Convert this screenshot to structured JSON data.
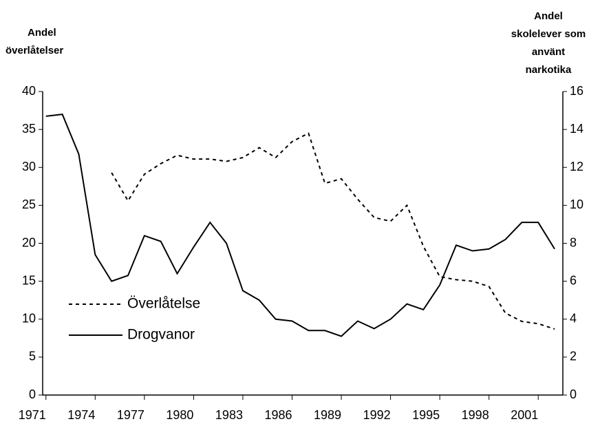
{
  "chart_data": {
    "type": "line",
    "ylabel": [
      "Andel",
      "överlåtelser"
    ],
    "y2label": [
      "Andel",
      "skolelever som",
      "använt",
      "narkotika"
    ],
    "x": [
      1971,
      1972,
      1973,
      1974,
      1975,
      1976,
      1977,
      1978,
      1979,
      1980,
      1981,
      1982,
      1983,
      1984,
      1985,
      1986,
      1987,
      1988,
      1989,
      1990,
      1991,
      1992,
      1993,
      1994,
      1995,
      1996,
      1997,
      1998,
      1999,
      2000,
      2001,
      2002
    ],
    "series": [
      {
        "name": "Överlåtelse",
        "color": "#000000",
        "dash": true,
        "axis": "y",
        "values": [
          null,
          null,
          null,
          null,
          29.3,
          25.6,
          29.1,
          30.5,
          31.6,
          31.1,
          31.1,
          30.8,
          31.3,
          32.6,
          31.3,
          33.4,
          34.5,
          27.9,
          28.5,
          25.8,
          23.4,
          22.9,
          25.0,
          19.6,
          15.6,
          15.2,
          15.0,
          14.3,
          10.8,
          9.7,
          9.4,
          8.7
        ]
      },
      {
        "name": "Drogvanor",
        "color": "#000000",
        "dash": false,
        "axis": "y2",
        "values": [
          14.7,
          14.8,
          12.7,
          7.4,
          6.0,
          6.3,
          8.4,
          8.1,
          6.4,
          7.8,
          9.1,
          8.0,
          5.5,
          5.0,
          4.0,
          3.9,
          3.4,
          3.4,
          3.1,
          3.9,
          3.5,
          4.0,
          4.8,
          4.5,
          5.8,
          7.9,
          7.6,
          7.7,
          8.2,
          9.1,
          9.1,
          7.7
        ]
      }
    ],
    "xlim": [
      1970.8,
      2002.5
    ],
    "xticks": [
      1971,
      1974,
      1977,
      1980,
      1983,
      1986,
      1989,
      1992,
      1995,
      1998,
      2001
    ],
    "ylim": [
      0,
      40
    ],
    "yticks": [
      0,
      5,
      10,
      15,
      20,
      25,
      30,
      35,
      40
    ],
    "y2lim": [
      0,
      16
    ],
    "y2ticks": [
      0,
      2,
      4,
      6,
      8,
      10,
      12,
      14,
      16
    ],
    "legend": "lower-left"
  }
}
